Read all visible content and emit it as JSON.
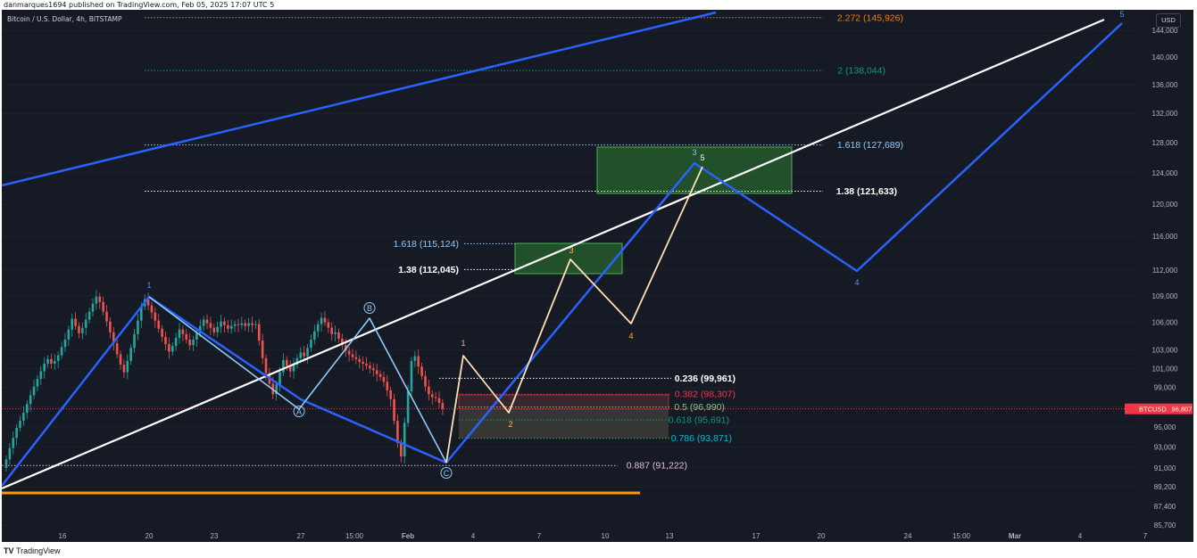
{
  "header": {
    "published": "danmarques1694 published on TradingView.com, Feb 05, 2025 17:07 UTC 5"
  },
  "footer": {
    "logo": "TV",
    "brand": "TradingView"
  },
  "chart_meta": {
    "symbol": "Bitcoin / U.S. Dollar, 4h, BITSTAMP",
    "currency": "USD",
    "price_tag_label": "BTCUSD",
    "price_tag_value": "96,807",
    "colors": {
      "background": "#161a25",
      "up": "#26a69a",
      "down": "#ef5350",
      "wave_blue": "#2962ff",
      "wave_light": "#90caf9",
      "wave_cream": "#ffe0b2",
      "trendline": "#ffffff",
      "support": "#ff9800",
      "zone_green": "#2e7d32"
    }
  },
  "chart_data": {
    "type": "line",
    "title": "Bitcoin / U.S. Dollar, 4h, BITSTAMP",
    "x_tick_labels": [
      "16",
      "20",
      "23",
      "27",
      "15:00",
      "Feb",
      "4",
      "7",
      "10",
      "13",
      "17",
      "20",
      "24",
      "15:00",
      "Mar",
      "4",
      "7"
    ],
    "y_tick_labels": [
      "85,700",
      "87,400",
      "89,200",
      "91,000",
      "93,000",
      "95,000",
      "97,000",
      "99,000",
      "101,000",
      "103,000",
      "106,000",
      "109,000",
      "112,000",
      "116,000",
      "120,000",
      "124,000",
      "128,000",
      "132,000",
      "136,000",
      "140,000",
      "144,000"
    ],
    "y_log_scale": true,
    "fib_levels": [
      {
        "label": "2.272 (145,926)",
        "value": 145926,
        "color": "#f57c00"
      },
      {
        "label": "2 (138,044)",
        "value": 138044,
        "color": "#089981"
      },
      {
        "label": "1.618 (127,689)",
        "value": 127689,
        "color": "#90caf9"
      },
      {
        "label": "1.38 (121,633)",
        "value": 121633,
        "color": "#ffffff"
      },
      {
        "label": "1.618 (115,124)",
        "value": 115124,
        "color": "#90caf9"
      },
      {
        "label": "1.38 (112,045)",
        "value": 112045,
        "color": "#ffffff"
      },
      {
        "label": "0.236 (99,961)",
        "value": 99961,
        "color": "#ffffff"
      },
      {
        "label": "0.382 (98,307)",
        "value": 98307,
        "color": "#f23645"
      },
      {
        "label": "0.5 (96,990)",
        "value": 96990,
        "color": "#81c784"
      },
      {
        "label": "0.618 (95,691)",
        "value": 95691,
        "color": "#089981"
      },
      {
        "label": "0.786 (93,871)",
        "value": 93871,
        "color": "#00bcd4"
      },
      {
        "label": "0.887 (91,222)",
        "value": 91222,
        "color": "#e1bee7"
      }
    ],
    "current_price": 96807,
    "wave_labels": {
      "big_blue": [
        "1",
        "4",
        "5"
      ],
      "light_blue": [
        "A",
        "B",
        "C",
        "3"
      ],
      "cream": [
        "1",
        "2",
        "3",
        "4",
        "5"
      ]
    },
    "candle_seed": {
      "start_price": 91000,
      "closes": [
        91800,
        92900,
        93900,
        94900,
        95600,
        96400,
        97300,
        98200,
        99100,
        99900,
        100700,
        101500,
        102000,
        101500,
        101800,
        102400,
        103300,
        104100,
        105200,
        106400,
        105600,
        104800,
        105400,
        106300,
        107200,
        108100,
        108900,
        108300,
        107200,
        106100,
        104900,
        103700,
        102500,
        101400,
        100600,
        101800,
        103200,
        104700,
        106200,
        107800,
        108600,
        107900,
        107100,
        106200,
        105300,
        104400,
        103600,
        102800,
        103400,
        104300,
        105200,
        104700,
        104100,
        103500,
        104100,
        104800,
        105600,
        106300,
        105900,
        105400,
        104900,
        105500,
        106100,
        105700,
        105300,
        105600,
        105800,
        105700,
        105900,
        105600,
        105900,
        105700,
        105800,
        104000,
        102100,
        100500,
        99400,
        98300,
        99300,
        100600,
        101900,
        101300,
        100700,
        101400,
        102100,
        102700,
        102300,
        103200,
        104100,
        105000,
        105800,
        106500,
        106000,
        105400,
        104700,
        104900,
        104200,
        103500,
        102900,
        102500,
        102200,
        102000,
        101700,
        101500,
        101300,
        101000,
        100800,
        100400,
        100100,
        99600,
        98700,
        97800,
        95600,
        93400,
        92100,
        95400,
        98600,
        101800,
        102300,
        101200,
        100200,
        99100,
        98300,
        98000,
        97900,
        97400,
        96807
      ]
    }
  }
}
